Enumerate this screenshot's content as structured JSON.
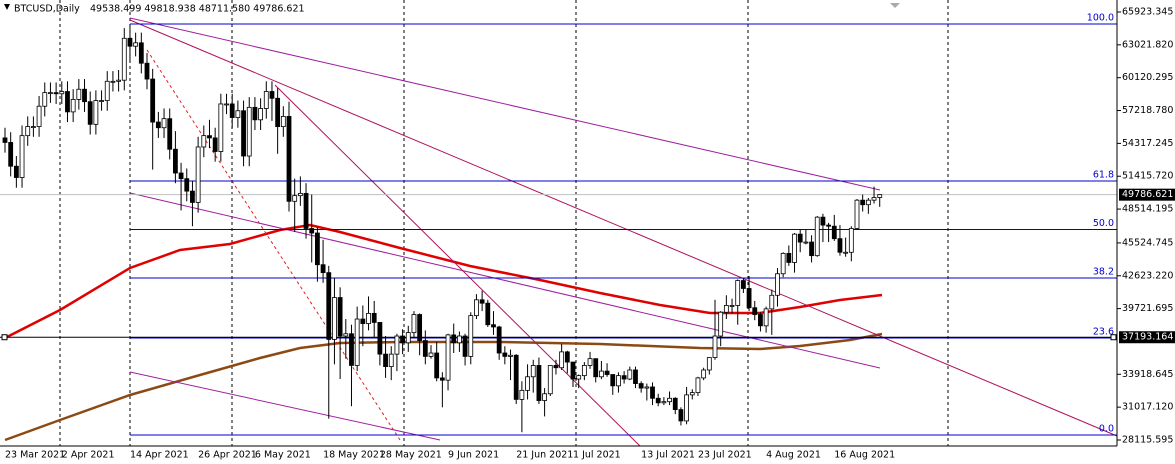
{
  "header": {
    "symbol": "BTCUSD,Daily",
    "ohlc": "49538.499 49818.938 48711.580 49786.621"
  },
  "chart_data": {
    "type": "candlestick",
    "categories": [
      "23 Mar 2021",
      null,
      null,
      null,
      null,
      null,
      null,
      null,
      null,
      null,
      "2 Apr 2021",
      null,
      null,
      null,
      null,
      null,
      null,
      null,
      null,
      null,
      null,
      null,
      "14 Apr 2021",
      null,
      null,
      null,
      null,
      null,
      null,
      null,
      null,
      null,
      null,
      null,
      "26 Apr 2021",
      null,
      null,
      null,
      null,
      null,
      null,
      null,
      null,
      null,
      "6 May 2021",
      null,
      null,
      null,
      null,
      null,
      null,
      null,
      null,
      null,
      null,
      null,
      "18 May 2021",
      null,
      null,
      null,
      null,
      null,
      null,
      null,
      null,
      null,
      "28 May 2021",
      null,
      null,
      null,
      null,
      null,
      null,
      null,
      null,
      null,
      null,
      null,
      "9 Jun 2021",
      null,
      null,
      null,
      null,
      null,
      null,
      null,
      null,
      null,
      null,
      null,
      "21 Jun 2021",
      null,
      null,
      null,
      null,
      null,
      null,
      null,
      null,
      null,
      "1 Jul 2021",
      null,
      null,
      null,
      null,
      null,
      null,
      null,
      null,
      null,
      null,
      null,
      "13 Jul 2021",
      null,
      null,
      null,
      null,
      null,
      null,
      null,
      null,
      null,
      "23 Jul 2021",
      null,
      null,
      null,
      null,
      null,
      null,
      null,
      null,
      null,
      null,
      null,
      "4 Aug 2021",
      null,
      null,
      null,
      null,
      null,
      null,
      null,
      null,
      null,
      null,
      null,
      "16 Aug 2021",
      null,
      null,
      null,
      null,
      null,
      null,
      null,
      null
    ],
    "open": [
      54800,
      54400,
      52300,
      51300,
      55000,
      55800,
      55800,
      57600,
      58800,
      58800,
      58700,
      58900,
      57100,
      58200,
      59100,
      58000,
      56000,
      58100,
      58100,
      59800,
      59800,
      59900,
      63600,
      62900,
      63200,
      61400,
      60000,
      56200,
      55700,
      56500,
      53800,
      51700,
      51200,
      50100,
      49100,
      54000,
      55000,
      54800,
      53600,
      57800,
      57800,
      56600,
      57200,
      53200,
      57500,
      56400,
      57400,
      58900,
      58300,
      55800,
      56700,
      49200,
      49700,
      49900,
      46800,
      46400,
      43600,
      42900,
      37000,
      40700,
      37300,
      37500,
      34700,
      38800,
      38400,
      39300,
      38500,
      35700,
      34600,
      35700,
      37300,
      36700,
      37600,
      39200,
      36900,
      35500,
      35800,
      33600,
      33400,
      37400,
      36700,
      37300,
      35500,
      39100,
      40500,
      40200,
      38300,
      38100,
      35800,
      35500,
      35600,
      31700,
      32500,
      33700,
      34700,
      31600,
      32200,
      34700,
      34500,
      35900,
      35000,
      33500,
      33800,
      34700,
      35300,
      33700,
      34200,
      33900,
      32900,
      33800,
      33500,
      34300,
      33100,
      32700,
      32800,
      31800,
      31400,
      31500,
      31800,
      30800,
      29800,
      32100,
      32300,
      33600,
      34300,
      35400,
      37300,
      39400,
      40000,
      40000,
      42200,
      41500,
      39800,
      39200,
      38200,
      39700,
      40900,
      42800,
      44600,
      43800,
      46300,
      45600,
      45600,
      44400,
      47800,
      47100,
      47000,
      45900,
      44700,
      44700,
      46800,
      49300,
      48900,
      49300,
      49538.499
    ],
    "high": [
      55700,
      55300,
      53200,
      55900,
      56700,
      56700,
      58500,
      59700,
      59700,
      59700,
      59800,
      59800,
      59100,
      60000,
      60000,
      58900,
      59000,
      59000,
      60700,
      60700,
      60800,
      64500,
      64800,
      64100,
      64100,
      62300,
      60900,
      57100,
      57400,
      57400,
      55400,
      52600,
      52100,
      51000,
      54900,
      55900,
      56400,
      55700,
      58700,
      58700,
      58700,
      58100,
      58100,
      58400,
      58400,
      58300,
      59800,
      59800,
      59200,
      57600,
      58000,
      51200,
      51400,
      50800,
      49800,
      46900,
      45800,
      43500,
      42400,
      41600,
      38800,
      38300,
      39900,
      40000,
      40800,
      40400,
      38500,
      37300,
      36400,
      37500,
      37900,
      38200,
      39500,
      39300,
      37800,
      36500,
      36800,
      34100,
      37500,
      38400,
      37700,
      37500,
      39400,
      41000,
      41300,
      40500,
      39500,
      38200,
      36400,
      36100,
      35700,
      33300,
      34800,
      35200,
      35400,
      32700,
      34700,
      35200,
      36600,
      36000,
      35000,
      33900,
      35000,
      35900,
      35300,
      35100,
      34900,
      33900,
      34100,
      34200,
      34600,
      34600,
      33300,
      33100,
      33200,
      32200,
      31900,
      32400,
      31900,
      31000,
      32800,
      32600,
      33700,
      34500,
      35400,
      40500,
      39500,
      40900,
      40600,
      42300,
      42400,
      42600,
      40400,
      39400,
      39900,
      41400,
      43300,
      44700,
      45300,
      46400,
      46700,
      46700,
      46200,
      47900,
      48100,
      47300,
      48000,
      47100,
      46000,
      47000,
      49400,
      49800,
      49500,
      50500,
      49818.938
    ],
    "low": [
      53500,
      51400,
      50400,
      50400,
      54100,
      54900,
      54900,
      56700,
      57900,
      57800,
      57800,
      56200,
      56200,
      57300,
      57100,
      55100,
      55100,
      57200,
      57200,
      58900,
      58900,
      59000,
      61500,
      62000,
      60500,
      59100,
      52000,
      54800,
      54800,
      52900,
      50800,
      48400,
      49200,
      47000,
      48200,
      53100,
      53900,
      52700,
      52700,
      56900,
      55700,
      55700,
      52300,
      52300,
      55500,
      55500,
      56500,
      56300,
      53400,
      54900,
      48300,
      46500,
      48800,
      45900,
      43800,
      42100,
      42000,
      30000,
      34800,
      33500,
      35300,
      31100,
      34200,
      36400,
      37800,
      37200,
      34700,
      33600,
      33400,
      34200,
      35700,
      35900,
      37200,
      35600,
      34800,
      35300,
      33300,
      31000,
      32500,
      35800,
      35900,
      34700,
      34800,
      38800,
      39500,
      38100,
      37400,
      35200,
      34800,
      33400,
      31300,
      28800,
      31700,
      32300,
      31300,
      30200,
      32000,
      33900,
      34300,
      34000,
      32800,
      32700,
      33400,
      34400,
      33200,
      33500,
      33700,
      32100,
      32300,
      33100,
      33400,
      32700,
      32300,
      31600,
      31200,
      31100,
      31200,
      31200,
      30400,
      29400,
      29500,
      31700,
      32000,
      33400,
      33900,
      35200,
      36400,
      38800,
      39300,
      38300,
      41100,
      39500,
      38700,
      37700,
      37600,
      37400,
      39900,
      42500,
      43500,
      42900,
      44700,
      45400,
      43800,
      44300,
      45600,
      45600,
      45700,
      44400,
      44300,
      43900,
      46700,
      48300,
      48100,
      49000,
      48711.58
    ],
    "close": [
      54400,
      52300,
      51300,
      55000,
      55800,
      55800,
      57600,
      58800,
      58800,
      58700,
      58900,
      57100,
      58200,
      59100,
      58000,
      56000,
      58100,
      58100,
      59800,
      59800,
      59900,
      63600,
      62900,
      63200,
      61400,
      60000,
      56200,
      55700,
      56500,
      53800,
      51700,
      51200,
      50100,
      49100,
      54000,
      55000,
      54800,
      53600,
      57800,
      57800,
      56600,
      57200,
      53200,
      57500,
      56400,
      57400,
      58900,
      58300,
      55800,
      56700,
      49200,
      49700,
      49900,
      46800,
      46400,
      43600,
      42900,
      37000,
      40700,
      37300,
      37500,
      34700,
      38800,
      38400,
      39300,
      38500,
      35700,
      34600,
      35700,
      37300,
      36700,
      37600,
      39200,
      36900,
      35500,
      35800,
      33600,
      33400,
      37400,
      36700,
      37300,
      35500,
      39100,
      40500,
      40200,
      38300,
      38100,
      35800,
      35500,
      35600,
      31700,
      32500,
      33700,
      34700,
      31600,
      32200,
      34700,
      34500,
      35900,
      35000,
      33500,
      33800,
      34700,
      35300,
      33700,
      34200,
      33900,
      32900,
      33800,
      33500,
      34300,
      33100,
      32700,
      32800,
      31800,
      31400,
      31500,
      31800,
      30800,
      29800,
      32100,
      32300,
      33600,
      34300,
      35400,
      37300,
      39400,
      40000,
      40000,
      42200,
      41500,
      39800,
      39200,
      38200,
      39700,
      40900,
      42800,
      44600,
      43800,
      46300,
      45600,
      45600,
      44400,
      47800,
      47100,
      47000,
      45900,
      44700,
      44700,
      46800,
      49300,
      48900,
      49300,
      49530,
      49786.621
    ],
    "bull_color": "#ffffff",
    "bear_color": "#000000",
    "ylim": [
      27585,
      66983
    ],
    "yticks": [
      {
        "value": 65923.345,
        "label": "65923.345"
      },
      {
        "value": 63021.82,
        "label": "63021.820"
      },
      {
        "value": 60120.295,
        "label": "60120.295"
      },
      {
        "value": 57218.78,
        "label": "57218.780"
      },
      {
        "value": 54317.245,
        "label": "54317.245"
      },
      {
        "value": 51415.72,
        "label": "51415.720"
      },
      {
        "value": 48514.195,
        "label": "48514.195"
      },
      {
        "value": 45524.745,
        "label": "45524.745"
      },
      {
        "value": 42623.22,
        "label": "42623.220"
      },
      {
        "value": 39721.695,
        "label": "39721.695"
      },
      {
        "value": 33918.645,
        "label": "33918.645"
      },
      {
        "value": 31017.12,
        "label": "31017.120"
      },
      {
        "value": 28115.595,
        "label": "28115.595"
      }
    ],
    "fib": [
      {
        "level": "100.0",
        "price": 64863
      },
      {
        "level": "61.8",
        "price": 50995
      },
      {
        "level": "50.0",
        "price": 46711
      },
      {
        "level": "38.2",
        "price": 42428
      },
      {
        "level": "23.6",
        "price": 37128
      },
      {
        "level": "0.0",
        "price": 28560
      }
    ],
    "fib_color": "#0000cc",
    "hline": 37193.164
  }
}
